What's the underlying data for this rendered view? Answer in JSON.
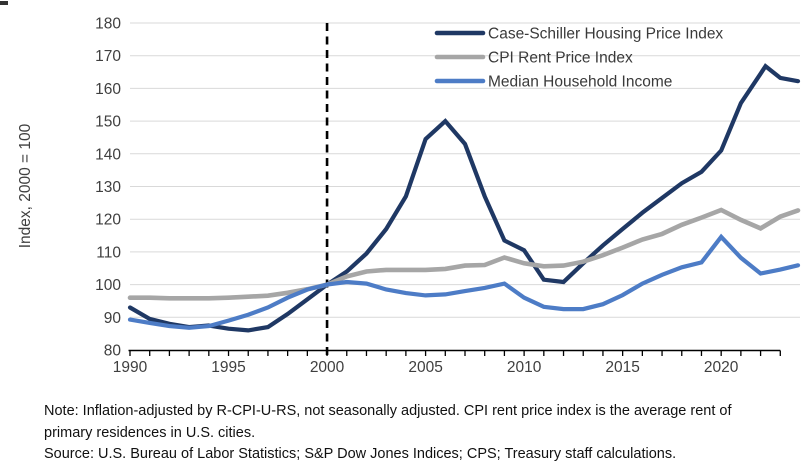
{
  "chart_data": {
    "type": "line",
    "title": "",
    "ylabel": "Index, 2000 = 100",
    "xlabel": "",
    "xlim": [
      1990,
      2024
    ],
    "ylim": [
      80,
      180
    ],
    "y_tick_step": 10,
    "x_label_years": [
      1990,
      1995,
      2000,
      2005,
      2010,
      2015,
      2020
    ],
    "x_minor_tick_step": 1,
    "x_axis_tick_start": 1990,
    "x_axis_tick_end": 2023,
    "reference_line_x": 2000,
    "grid": "horizontal",
    "grid_color": "#d9d9d9",
    "axis_color": "#000000",
    "tick_label_color": "#3f3f3f",
    "legend_position": "top-right-inside",
    "series": [
      {
        "name": "Case-Schiller Housing Price Index",
        "color": "#1f3864",
        "width": 4.2,
        "points": [
          [
            1990,
            93
          ],
          [
            1991,
            89.5
          ],
          [
            1992,
            88
          ],
          [
            1993,
            87
          ],
          [
            1994,
            87.5
          ],
          [
            1995,
            86.5
          ],
          [
            1996,
            86
          ],
          [
            1997,
            87
          ],
          [
            1998,
            91
          ],
          [
            1999,
            95.5
          ],
          [
            2000,
            100
          ],
          [
            2001,
            104
          ],
          [
            2002,
            109.5
          ],
          [
            2003,
            117
          ],
          [
            2004,
            127
          ],
          [
            2005,
            144.5
          ],
          [
            2006,
            150
          ],
          [
            2007,
            143
          ],
          [
            2008,
            127
          ],
          [
            2009,
            113.5
          ],
          [
            2010,
            110.5
          ],
          [
            2011,
            101.5
          ],
          [
            2012,
            100.8
          ],
          [
            2013,
            106.5
          ],
          [
            2014,
            112
          ],
          [
            2015,
            117
          ],
          [
            2016,
            122
          ],
          [
            2017,
            126.5
          ],
          [
            2018,
            131
          ],
          [
            2019,
            134.5
          ],
          [
            2020,
            141
          ],
          [
            2021,
            155.5
          ],
          [
            2022,
            164.5
          ],
          [
            2022.25,
            166.8
          ],
          [
            2023,
            163.2
          ],
          [
            2023.9,
            162.2
          ]
        ]
      },
      {
        "name": "CPI Rent Price Index",
        "color": "#a6a6a6",
        "width": 4.6,
        "points": [
          [
            1990,
            96
          ],
          [
            1991,
            96
          ],
          [
            1992,
            95.8
          ],
          [
            1993,
            95.8
          ],
          [
            1994,
            95.8
          ],
          [
            1995,
            96
          ],
          [
            1996,
            96.3
          ],
          [
            1997,
            96.6
          ],
          [
            1998,
            97.5
          ],
          [
            1999,
            98.6
          ],
          [
            2000,
            100
          ],
          [
            2001,
            102.5
          ],
          [
            2002,
            104
          ],
          [
            2003,
            104.5
          ],
          [
            2004,
            104.5
          ],
          [
            2005,
            104.5
          ],
          [
            2006,
            104.8
          ],
          [
            2007,
            105.8
          ],
          [
            2008,
            106
          ],
          [
            2009,
            108.3
          ],
          [
            2010,
            106.5
          ],
          [
            2011,
            105.6
          ],
          [
            2012,
            105.8
          ],
          [
            2013,
            107
          ],
          [
            2014,
            109
          ],
          [
            2015,
            111.3
          ],
          [
            2016,
            113.8
          ],
          [
            2017,
            115.5
          ],
          [
            2018,
            118.3
          ],
          [
            2019,
            120.5
          ],
          [
            2020,
            122.8
          ],
          [
            2021,
            119.8
          ],
          [
            2022,
            117.2
          ],
          [
            2023,
            120.8
          ],
          [
            2023.9,
            122.7
          ]
        ]
      },
      {
        "name": "Median Household Income",
        "color": "#4d7cc6",
        "width": 4.2,
        "points": [
          [
            1990,
            89.3
          ],
          [
            1991,
            88.3
          ],
          [
            1992,
            87.3
          ],
          [
            1993,
            86.8
          ],
          [
            1994,
            87.3
          ],
          [
            1995,
            89
          ],
          [
            1996,
            90.8
          ],
          [
            1997,
            93
          ],
          [
            1998,
            96
          ],
          [
            1999,
            98.5
          ],
          [
            2000,
            100
          ],
          [
            2001,
            100.8
          ],
          [
            2002,
            100.3
          ],
          [
            2003,
            98.5
          ],
          [
            2004,
            97.4
          ],
          [
            2005,
            96.7
          ],
          [
            2006,
            97
          ],
          [
            2007,
            98
          ],
          [
            2008,
            99
          ],
          [
            2009,
            100.3
          ],
          [
            2010,
            96
          ],
          [
            2011,
            93.2
          ],
          [
            2012,
            92.5
          ],
          [
            2013,
            92.5
          ],
          [
            2014,
            94
          ],
          [
            2015,
            96.8
          ],
          [
            2016,
            100.3
          ],
          [
            2017,
            103
          ],
          [
            2018,
            105.3
          ],
          [
            2019,
            106.8
          ],
          [
            2020,
            114.6
          ],
          [
            2021,
            108.2
          ],
          [
            2022,
            103.4
          ],
          [
            2023,
            104.6
          ],
          [
            2023.9,
            105.9
          ]
        ]
      }
    ]
  },
  "notes": {
    "note": "Note: Inflation-adjusted by R-CPI-U-RS, not seasonally adjusted. CPI rent price index is the average rent of primary residences in U.S. cities.",
    "source": "Source: U.S. Bureau of Labor Statistics; S&P Dow Jones Indices; CPS; Treasury staff calculations."
  }
}
